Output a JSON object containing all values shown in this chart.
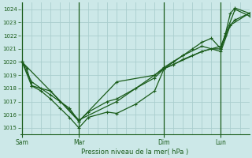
{
  "title": "Pression niveau de la mer( hPa )",
  "bg_color": "#cce8e8",
  "grid_color": "#aacece",
  "line_color": "#1a5c1a",
  "ylim": [
    1014.5,
    1024.5
  ],
  "yticks": [
    1015,
    1016,
    1017,
    1018,
    1019,
    1020,
    1021,
    1022,
    1023,
    1024
  ],
  "xtick_labels": [
    "Sam",
    "Mar",
    "Dim",
    "Lun"
  ],
  "xtick_pos": [
    0,
    60,
    150,
    210
  ],
  "xlim": [
    -2,
    240
  ],
  "vline_pos": [
    0,
    60,
    150,
    210
  ],
  "series1_x": [
    0,
    5,
    10,
    20,
    30,
    40,
    50,
    60,
    70,
    90,
    100,
    120,
    140,
    150,
    160,
    170,
    180,
    190,
    200,
    210,
    215,
    220,
    225,
    240
  ],
  "series1_y": [
    1020.0,
    1019.5,
    1018.2,
    1017.8,
    1017.2,
    1016.5,
    1015.8,
    1015.0,
    1015.8,
    1016.2,
    1016.1,
    1016.8,
    1017.8,
    1019.5,
    1019.8,
    1020.2,
    1020.5,
    1020.8,
    1021.0,
    1021.0,
    1022.2,
    1023.7,
    1024.1,
    1023.7
  ],
  "series2_x": [
    0,
    10,
    20,
    30,
    40,
    50,
    60,
    70,
    90,
    100,
    120,
    140,
    150,
    160,
    170,
    180,
    190,
    200,
    210,
    215,
    220,
    225,
    240
  ],
  "series2_y": [
    1020.0,
    1018.5,
    1018.0,
    1017.5,
    1017.0,
    1016.5,
    1015.5,
    1016.2,
    1017.0,
    1017.2,
    1018.0,
    1018.8,
    1019.5,
    1020.0,
    1020.5,
    1021.0,
    1021.5,
    1021.8,
    1021.0,
    1022.0,
    1022.8,
    1023.2,
    1023.7
  ],
  "series3_x": [
    0,
    10,
    30,
    60,
    100,
    140,
    150,
    170,
    190,
    210,
    220,
    240
  ],
  "series3_y": [
    1020.0,
    1018.2,
    1017.8,
    1015.5,
    1018.5,
    1019.0,
    1019.6,
    1020.5,
    1021.2,
    1020.8,
    1022.8,
    1023.7
  ],
  "series4_x": [
    0,
    60,
    100,
    150,
    190,
    210,
    225,
    240
  ],
  "series4_y": [
    1020.0,
    1015.6,
    1017.0,
    1019.5,
    1020.8,
    1021.2,
    1024.0,
    1023.5
  ]
}
